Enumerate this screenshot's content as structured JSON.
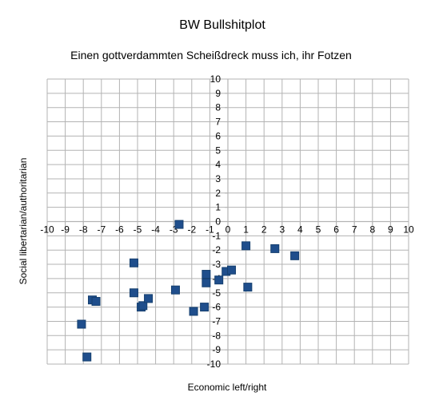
{
  "chart_data": {
    "type": "scatter",
    "title": "BW Bullshitplot",
    "subtitle": "Einen gottverdammten Scheißdreck muss ich, ihr Fotzen",
    "xlabel": "Economic left/right",
    "ylabel": "Social libertarian/authoritarian",
    "xlim": [
      -10,
      10
    ],
    "ylim": [
      -10,
      10
    ],
    "xticks": [
      -10,
      -9,
      -8,
      -7,
      -6,
      -5,
      -4,
      -3,
      -2,
      -1,
      0,
      1,
      2,
      3,
      4,
      5,
      6,
      7,
      8,
      9,
      10
    ],
    "yticks": [
      -10,
      -9,
      -8,
      -7,
      -6,
      -5,
      -4,
      -3,
      -2,
      -1,
      0,
      1,
      2,
      3,
      4,
      5,
      6,
      7,
      8,
      9,
      10
    ],
    "grid": true,
    "legend": "none",
    "marker_color": "#1f4e8c",
    "grid_color": "#b3b3b3",
    "series": [
      {
        "points": [
          {
            "x": -8.1,
            "y": -7.2
          },
          {
            "x": -7.8,
            "y": -9.5
          },
          {
            "x": -7.5,
            "y": -5.5
          },
          {
            "x": -7.3,
            "y": -5.6
          },
          {
            "x": -5.2,
            "y": -2.9
          },
          {
            "x": -5.2,
            "y": -5.0
          },
          {
            "x": -4.8,
            "y": -6.0
          },
          {
            "x": -4.7,
            "y": -5.9
          },
          {
            "x": -4.4,
            "y": -5.4
          },
          {
            "x": -2.9,
            "y": -4.8
          },
          {
            "x": -2.7,
            "y": -0.2
          },
          {
            "x": -1.9,
            "y": -6.3
          },
          {
            "x": -1.3,
            "y": -6.0
          },
          {
            "x": -1.2,
            "y": -3.7
          },
          {
            "x": -1.2,
            "y": -4.3
          },
          {
            "x": -0.5,
            "y": -4.1
          },
          {
            "x": -0.1,
            "y": -3.5
          },
          {
            "x": 0.2,
            "y": -3.4
          },
          {
            "x": 1.0,
            "y": -1.7
          },
          {
            "x": 1.1,
            "y": -4.6
          },
          {
            "x": 2.6,
            "y": -1.9
          },
          {
            "x": 3.7,
            "y": -2.4
          }
        ]
      }
    ]
  }
}
